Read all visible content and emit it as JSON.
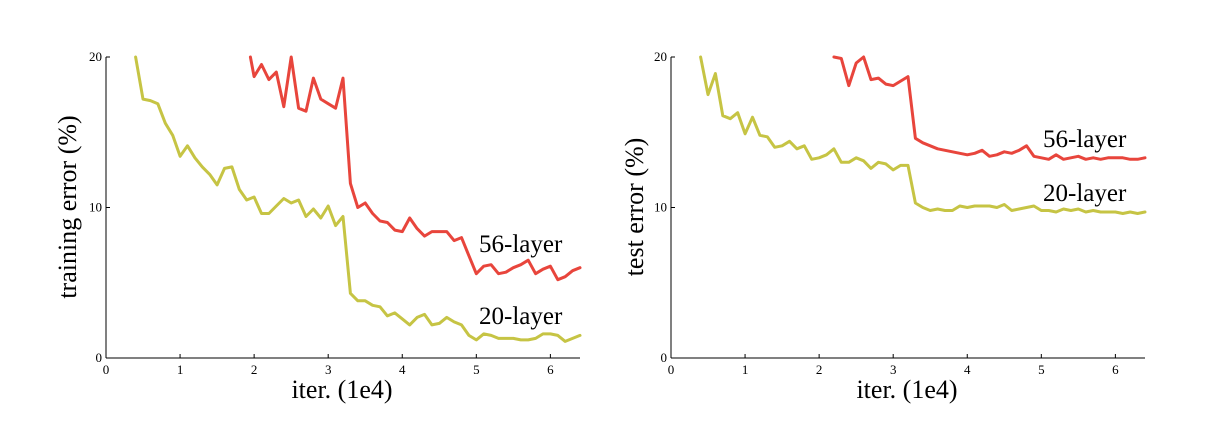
{
  "colors": {
    "layer56": "#e8453c",
    "layer20": "#c6c444"
  },
  "chart_data": [
    {
      "type": "line",
      "title": "",
      "xlabel": "iter. (1e4)",
      "ylabel": "training error (%)",
      "xlim": [
        0,
        6.4
      ],
      "ylim": [
        0,
        20
      ],
      "xticks": [
        0,
        1,
        2,
        3,
        4,
        5,
        6
      ],
      "yticks": [
        0,
        10,
        20
      ],
      "grid": false,
      "series": [
        {
          "name": "56-layer",
          "color": "#e8453c",
          "x": [
            1.95,
            2.0,
            2.1,
            2.2,
            2.3,
            2.4,
            2.5,
            2.6,
            2.7,
            2.8,
            2.9,
            3.0,
            3.1,
            3.2,
            3.3,
            3.4,
            3.5,
            3.6,
            3.7,
            3.8,
            3.9,
            4.0,
            4.1,
            4.2,
            4.3,
            4.4,
            4.5,
            4.6,
            4.7,
            4.8,
            4.9,
            5.0,
            5.1,
            5.2,
            5.3,
            5.4,
            5.5,
            5.6,
            5.7,
            5.8,
            5.9,
            6.0,
            6.1,
            6.2,
            6.3,
            6.4
          ],
          "y": [
            20.0,
            18.7,
            19.5,
            18.5,
            19.0,
            16.7,
            20.0,
            16.6,
            16.4,
            18.6,
            17.2,
            16.9,
            16.6,
            18.6,
            11.6,
            10.0,
            10.3,
            9.6,
            9.1,
            9.0,
            8.5,
            8.4,
            9.3,
            8.6,
            8.1,
            8.4,
            8.4,
            8.4,
            7.8,
            8.0,
            6.8,
            5.6,
            6.1,
            6.2,
            5.6,
            5.7,
            6.0,
            6.2,
            6.5,
            5.6,
            5.9,
            6.1,
            5.2,
            5.4,
            5.8,
            6.0
          ]
        },
        {
          "name": "20-layer",
          "color": "#c6c444",
          "x": [
            0.4,
            0.5,
            0.6,
            0.7,
            0.8,
            0.9,
            1.0,
            1.1,
            1.2,
            1.3,
            1.4,
            1.5,
            1.6,
            1.7,
            1.8,
            1.9,
            2.0,
            2.1,
            2.2,
            2.3,
            2.4,
            2.5,
            2.6,
            2.7,
            2.8,
            2.9,
            3.0,
            3.1,
            3.2,
            3.3,
            3.4,
            3.5,
            3.6,
            3.7,
            3.8,
            3.9,
            4.0,
            4.1,
            4.2,
            4.3,
            4.4,
            4.5,
            4.6,
            4.7,
            4.8,
            4.9,
            5.0,
            5.1,
            5.2,
            5.3,
            5.4,
            5.5,
            5.6,
            5.7,
            5.8,
            5.9,
            6.0,
            6.1,
            6.2,
            6.3,
            6.4
          ],
          "y": [
            20.0,
            17.2,
            17.1,
            16.9,
            15.6,
            14.8,
            13.4,
            14.1,
            13.3,
            12.7,
            12.2,
            11.5,
            12.6,
            12.7,
            11.2,
            10.5,
            10.7,
            9.6,
            9.6,
            10.1,
            10.6,
            10.3,
            10.5,
            9.4,
            9.9,
            9.3,
            10.1,
            8.8,
            9.4,
            4.3,
            3.8,
            3.8,
            3.5,
            3.4,
            2.8,
            3.0,
            2.6,
            2.2,
            2.7,
            2.9,
            2.2,
            2.3,
            2.7,
            2.4,
            2.2,
            1.5,
            1.2,
            1.6,
            1.5,
            1.3,
            1.3,
            1.3,
            1.2,
            1.2,
            1.3,
            1.6,
            1.6,
            1.5,
            1.1,
            1.3,
            1.5
          ]
        }
      ]
    },
    {
      "type": "line",
      "title": "",
      "xlabel": "iter. (1e4)",
      "ylabel": "test error (%)",
      "xlim": [
        0,
        6.4
      ],
      "ylim": [
        0,
        20
      ],
      "xticks": [
        0,
        1,
        2,
        3,
        4,
        5,
        6
      ],
      "yticks": [
        0,
        10,
        20
      ],
      "grid": false,
      "series": [
        {
          "name": "56-layer",
          "color": "#e8453c",
          "x": [
            2.2,
            2.3,
            2.4,
            2.5,
            2.6,
            2.7,
            2.8,
            2.9,
            3.0,
            3.1,
            3.2,
            3.3,
            3.4,
            3.5,
            3.6,
            3.7,
            3.8,
            3.9,
            4.0,
            4.1,
            4.2,
            4.3,
            4.4,
            4.5,
            4.6,
            4.7,
            4.8,
            4.9,
            5.0,
            5.1,
            5.2,
            5.3,
            5.4,
            5.5,
            5.6,
            5.7,
            5.8,
            5.9,
            6.0,
            6.1,
            6.2,
            6.3,
            6.4
          ],
          "y": [
            20.0,
            19.9,
            18.1,
            19.6,
            20.0,
            18.5,
            18.6,
            18.2,
            18.1,
            18.4,
            18.7,
            14.6,
            14.3,
            14.1,
            13.9,
            13.8,
            13.7,
            13.6,
            13.5,
            13.6,
            13.8,
            13.4,
            13.5,
            13.7,
            13.6,
            13.8,
            14.1,
            13.4,
            13.3,
            13.2,
            13.5,
            13.2,
            13.3,
            13.4,
            13.2,
            13.3,
            13.2,
            13.3,
            13.3,
            13.3,
            13.2,
            13.2,
            13.3
          ]
        },
        {
          "name": "20-layer",
          "color": "#c6c444",
          "x": [
            0.4,
            0.5,
            0.6,
            0.7,
            0.8,
            0.9,
            1.0,
            1.1,
            1.2,
            1.3,
            1.4,
            1.5,
            1.6,
            1.7,
            1.8,
            1.9,
            2.0,
            2.1,
            2.2,
            2.3,
            2.4,
            2.5,
            2.6,
            2.7,
            2.8,
            2.9,
            3.0,
            3.1,
            3.2,
            3.3,
            3.4,
            3.5,
            3.6,
            3.7,
            3.8,
            3.9,
            4.0,
            4.1,
            4.2,
            4.3,
            4.4,
            4.5,
            4.6,
            4.7,
            4.8,
            4.9,
            5.0,
            5.1,
            5.2,
            5.3,
            5.4,
            5.5,
            5.6,
            5.7,
            5.8,
            5.9,
            6.0,
            6.1,
            6.2,
            6.3,
            6.4
          ],
          "y": [
            20.0,
            17.5,
            18.9,
            16.1,
            15.9,
            16.3,
            14.9,
            16.0,
            14.8,
            14.7,
            14.0,
            14.1,
            14.4,
            13.9,
            14.1,
            13.2,
            13.3,
            13.5,
            13.9,
            13.0,
            13.0,
            13.3,
            13.1,
            12.6,
            13.0,
            12.9,
            12.5,
            12.8,
            12.8,
            10.3,
            10.0,
            9.8,
            9.9,
            9.8,
            9.8,
            10.1,
            10.0,
            10.1,
            10.1,
            10.1,
            10.0,
            10.2,
            9.8,
            9.9,
            10.0,
            10.1,
            9.8,
            9.8,
            9.7,
            9.9,
            9.8,
            9.9,
            9.7,
            9.8,
            9.7,
            9.7,
            9.7,
            9.6,
            9.7,
            9.6,
            9.7
          ]
        }
      ]
    }
  ]
}
